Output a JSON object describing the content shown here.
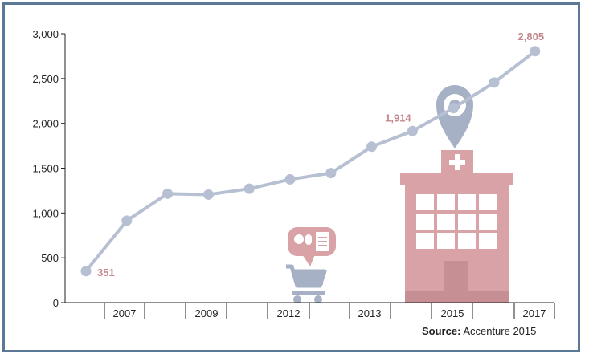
{
  "chart_data": {
    "type": "line",
    "title": "",
    "xlabel": "",
    "ylabel": "",
    "ylim": [
      0,
      3000
    ],
    "yticks": [
      0,
      500,
      1000,
      1500,
      2000,
      2500,
      3000
    ],
    "ytick_labels": [
      "0",
      "500",
      "1,000",
      "1,500",
      "2,000",
      "2,500",
      "3,000"
    ],
    "xtick_labels": [
      "2007",
      "2009",
      "2012",
      "2013",
      "2015",
      "2017"
    ],
    "series": [
      {
        "values": [
          351,
          915,
          1215,
          1205,
          1270,
          1375,
          1445,
          1740,
          1914,
          2170,
          2455,
          2805
        ]
      }
    ],
    "annotations": [
      {
        "index": 0,
        "label": "351"
      },
      {
        "index": 8,
        "label": "1,914"
      },
      {
        "index": 11,
        "label": "2,805"
      }
    ],
    "line_color": "#b7c0d2",
    "accent_color": "#c4878d",
    "grid": false
  },
  "source": {
    "prefix": "Source:",
    "text": "Accenture 2015"
  },
  "icons": [
    "map-pin-icon",
    "hospital-icon",
    "shopping-cart-icon",
    "pills-speech-bubble-icon"
  ]
}
